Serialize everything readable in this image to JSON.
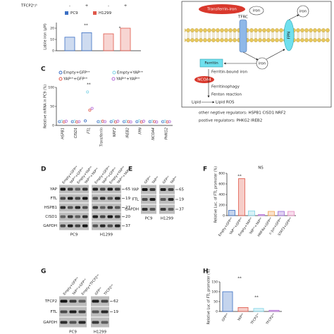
{
  "panel_letters": [
    "C",
    "D",
    "E",
    "F",
    "G",
    "H"
  ],
  "panel_a": {
    "row_label": "TFCP2ᵒ/ᶜ",
    "categories": [
      "-",
      "+"
    ],
    "y_label": "Labile iron (μM)",
    "ylim": [
      0,
      25
    ],
    "yticks": [
      0,
      10,
      20
    ],
    "series": [
      {
        "name": "PC9",
        "color": "#3b6fc4",
        "values": [
          12,
          16
        ]
      },
      {
        "name": "H1299",
        "color": "#e0584a",
        "values": [
          15,
          20
        ]
      }
    ],
    "annotations": [
      "**",
      "*"
    ]
  },
  "diagram": {
    "transferrin": "Transferrin-iron",
    "iron_top": "iron",
    "iron_out": "iron",
    "tfrc": "TFRC",
    "fpn": "FPN",
    "iron_mid": "iron",
    "ferritin": "Ferritin",
    "ferritin_bound": "Ferritin-bound iron",
    "ncoa4": "NCOA4",
    "ferritinophagy": "Ferritinophagy",
    "fenton": "Fenton reaction",
    "lipid": "Lipid",
    "lipid_ros": "Lipid ROS",
    "negative": "other negtive regulators:  HSPB1  CISD1  NRF2",
    "positive": "postive regulators:  PHKG2  IREB2"
  },
  "panel_c": {
    "y_label": "Relative mRNA in PC9 (%)",
    "categories": [
      "HSPB1",
      "CISD1",
      "FTL",
      "Transferrin",
      "NRF2",
      "IREB2",
      "FPN",
      "NCOA4",
      "PHKG2"
    ],
    "ylim": [
      0,
      100
    ],
    "yticks": [
      0,
      50,
      100
    ],
    "series": [
      {
        "name": "Empty+GFPᵒᵉ",
        "color": "#3b6fc4",
        "values": [
          10,
          10,
          12,
          10,
          10,
          10,
          10,
          10,
          10
        ]
      },
      {
        "name": "Empty+YAPᵒᵉ",
        "color": "#7fd3e6",
        "values": [
          11,
          11,
          88,
          9,
          12,
          11,
          12,
          11,
          11
        ]
      },
      {
        "name": "YAPˢʰ+GFPᵒᵉ",
        "color": "#e0584a",
        "values": [
          9,
          9,
          40,
          11,
          9,
          10,
          9,
          10,
          9
        ]
      },
      {
        "name": "YAPˢʰ+YAPᵒᵉ",
        "color": "#b36ad6",
        "values": [
          11,
          10,
          45,
          10,
          11,
          9,
          11,
          9,
          10
        ]
      }
    ],
    "annotations": [
      "**"
    ]
  },
  "panel_d": {
    "rows": [
      {
        "name": "YAP",
        "marker": 65
      },
      {
        "name": "FTL",
        "marker": 19
      },
      {
        "name": "HSPB1",
        "marker": 27
      },
      {
        "name": "CISD1",
        "marker": 20
      },
      {
        "name": "GAPDH",
        "marker": 37
      }
    ],
    "blocks": [
      {
        "label": "PC9",
        "lanes": [
          "Empty+GFPᵒᵉ",
          "YAPˢʰ+GFPᵒᵉ",
          "Empty+YAPᵒᵉ",
          "YAPˢʰ+YAPᵒᵉ"
        ]
      },
      {
        "label": "H1299",
        "lanes": [
          "Empty+GFPᵒᵉ",
          "YAPˢʰ+GFPᵒᵉ",
          "Empty+YAPᵒᵉ",
          "YAPˢʰ+YAPᵒᵉ"
        ]
      }
    ]
  },
  "panel_e": {
    "rows": [
      {
        "name": "YAP",
        "marker": 65
      },
      {
        "name": "FTL",
        "marker": 19
      },
      {
        "name": "GAPDH",
        "marker": 37
      }
    ],
    "blocks": [
      {
        "label": "PC9",
        "lanes": [
          "GFPᵒᵉ",
          "YAPᵒᵉ"
        ]
      },
      {
        "label": "H1299",
        "lanes": [
          "GFPᵒᵉ",
          "YAPᵒᵉ"
        ]
      }
    ]
  },
  "panel_f": {
    "y_label": "Relative Luc. of FTL promoter (%)",
    "categories": [
      "Empty+GFPᵒᵉ",
      "YAPˢʰ+GFPᵒᵉ",
      "Empty+YAPᵒᵉ",
      "YAPˢʰ+YAPᵒᵉ",
      "HNF4α+GFPᵒᵉ",
      "c-Jun+GFPᵒᵉ",
      "STAT3+GFPᵒᵉ"
    ],
    "values": [
      100,
      700,
      90,
      20,
      80,
      80,
      80
    ],
    "colors": [
      "#3b6fc4",
      "#e0584a",
      "#7fd3e6",
      "#b36ad6",
      "#f0a050",
      "#9a6ad6",
      "#e68ac0"
    ],
    "ylim": [
      0,
      800
    ],
    "yticks": [
      0,
      200,
      400,
      600,
      800
    ],
    "annotations": [
      "NS",
      "**"
    ]
  },
  "panel_g": {
    "rows": [
      {
        "name": "TFCP2",
        "marker": 62
      },
      {
        "name": "FTL",
        "marker": 19
      },
      {
        "name": "GAPDH"
      }
    ],
    "blocks": [
      {
        "label": "PC9",
        "lanes": [
          "Empty+GFPᵒᵉ",
          "YAPˢʰ+GFPᵒᵉ",
          "Empty+TFCP2ᵒᵉ"
        ]
      },
      {
        "label": "H1299",
        "lanes": [
          "GFPᵒᵉ",
          "TFCP2ᵒᵉ"
        ]
      }
    ]
  },
  "panel_h": {
    "y_label": "Relative Luc of FTL promoter (%)",
    "categories": [
      "GFPᵒᵉ",
      "YAPᵒᵉ",
      "TFCP2ˢʰ",
      "TFCP2ᵒᵉ"
    ],
    "values": [
      100,
      20,
      15,
      6
    ],
    "colors": [
      "#3b6fc4",
      "#e0584a",
      "#7fd3e6",
      "#b36ad6"
    ],
    "ylim": [
      0,
      150
    ],
    "yticks": [
      0,
      50,
      100,
      150
    ],
    "annotations": [
      "**",
      "**"
    ]
  }
}
